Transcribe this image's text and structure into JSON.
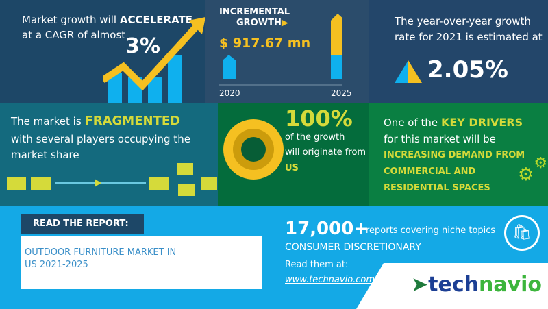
{
  "cagr": {
    "line1": "Market growth will",
    "line1_bold": "ACCELERATE",
    "line2": "at a CAGR of almost",
    "value": "3%"
  },
  "incremental": {
    "title1": "INCREMENTAL",
    "title2": "GROWTH",
    "value": "$ 917.67 mn",
    "year_start": "2020",
    "year_end": "2025"
  },
  "yoy": {
    "line1": "The year-over-year growth",
    "line2": "rate for 2021 is estimated at",
    "value": "2.05%"
  },
  "fragmented": {
    "line1": "The market is",
    "bold": "FRAGMENTED",
    "line2": "with several players occupying the",
    "line3": "market share"
  },
  "region": {
    "value": "100%",
    "line1": "of the growth",
    "line2": "will originate from",
    "region": "US"
  },
  "drivers": {
    "line1": "One of the",
    "bold": "KEY DRIVERS",
    "line2": "for this market will be",
    "driver1": "INCREASING DEMAND FROM",
    "driver2": "COMMERCIAL AND",
    "driver3": "RESIDENTIAL SPACES"
  },
  "report": {
    "label": "READ THE REPORT:",
    "title1": "OUTDOOR FURNITURE MARKET IN",
    "title2": "US 2021-2025"
  },
  "promo": {
    "count": "17,000+",
    "count_text": "reports covering niche topics",
    "category": "CONSUMER DISCRETIONARY",
    "read_at": "Read them at:",
    "url": "www.technavio.com"
  },
  "brand": {
    "logo_part1": "tech",
    "logo_part2": "navio"
  },
  "colors": {
    "yellow": "#f5c021",
    "blue": "#0fb0ee",
    "green_text": "#d5da3a"
  }
}
